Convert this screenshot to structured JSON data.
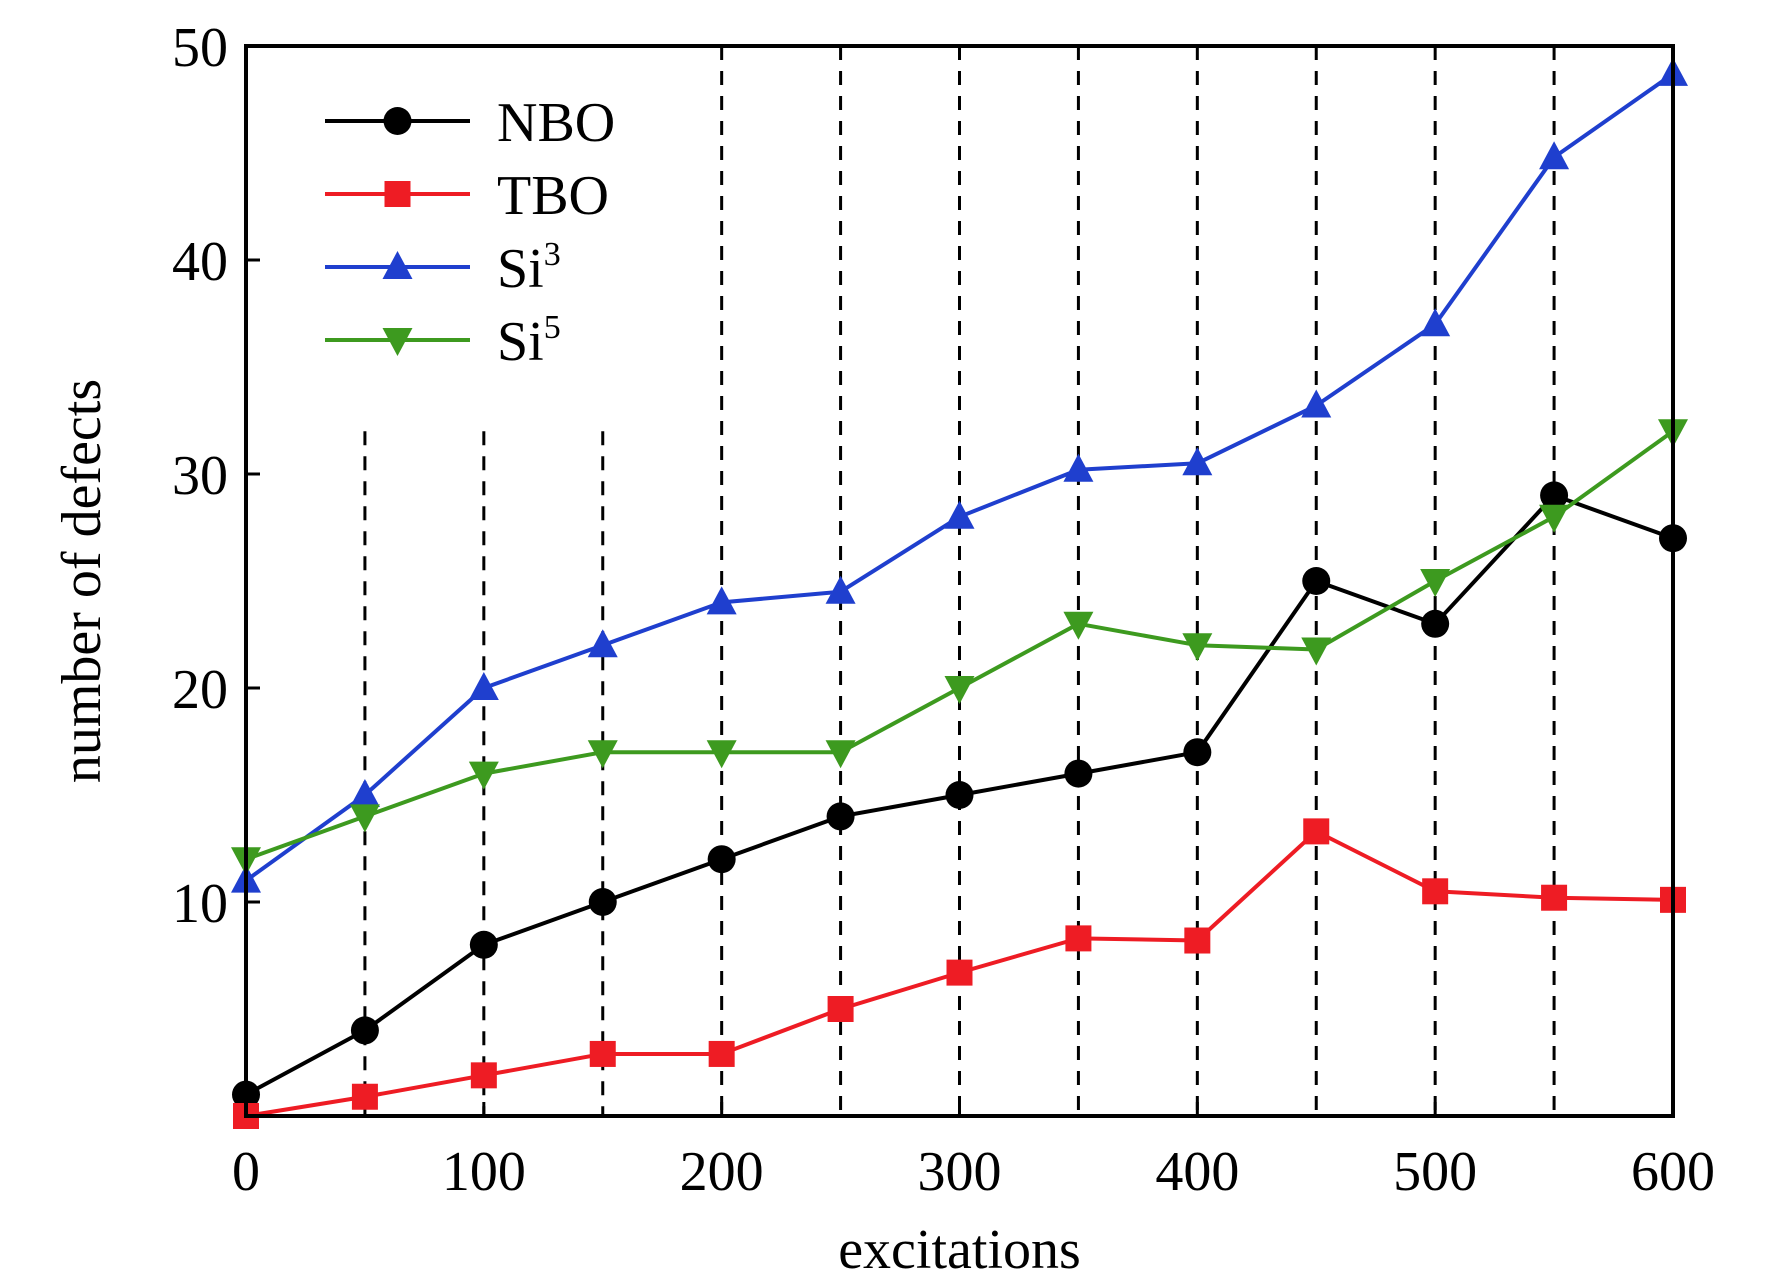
{
  "chart_data": {
    "type": "line",
    "xlabel": "excitations",
    "ylabel": "number of defects",
    "xlim": [
      0,
      600
    ],
    "ylim": [
      0,
      50
    ],
    "x_ticks": [
      0,
      100,
      200,
      300,
      400,
      500,
      600
    ],
    "y_ticks": [
      10,
      20,
      30,
      40,
      50
    ],
    "x_tick_labels": [
      "0",
      "100",
      "200",
      "300",
      "400",
      "500",
      "600"
    ],
    "y_tick_labels": [
      "10",
      "20",
      "30",
      "40",
      "50"
    ],
    "vertical_dashed_lines": [
      50,
      100,
      150,
      200,
      250,
      300,
      350,
      400,
      450,
      500,
      550
    ],
    "legend_position": "top-left",
    "grid": false,
    "x": [
      0,
      50,
      100,
      150,
      200,
      250,
      300,
      350,
      400,
      450,
      500,
      550,
      600
    ],
    "series": [
      {
        "name": "NBO",
        "name_base": "NBO",
        "name_sup": "",
        "color": "#000000",
        "marker": "circle",
        "values": [
          1,
          4,
          8,
          10,
          12,
          14,
          15,
          16,
          17,
          25,
          23,
          29,
          27
        ]
      },
      {
        "name": "TBO",
        "name_base": "TBO",
        "name_sup": "",
        "color": "#ee1c24",
        "marker": "square",
        "values": [
          0,
          0.9,
          1.9,
          2.9,
          2.9,
          5,
          6.7,
          8.3,
          8.2,
          13.3,
          10.5,
          10.2,
          10.1
        ]
      },
      {
        "name": "Si3",
        "name_base": "Si",
        "name_sup": "3",
        "color": "#1f3fce",
        "marker": "triangle-up",
        "values": [
          11,
          15,
          20,
          22,
          24,
          24.5,
          28,
          30.2,
          30.5,
          33.2,
          37,
          44.8,
          48.7
        ]
      },
      {
        "name": "Si5",
        "name_base": "Si",
        "name_sup": "5",
        "color": "#3d9a1f",
        "marker": "triangle-down",
        "values": [
          12,
          14,
          16,
          17,
          17,
          17,
          20,
          23,
          22,
          21.8,
          25,
          28,
          32
        ]
      }
    ]
  }
}
